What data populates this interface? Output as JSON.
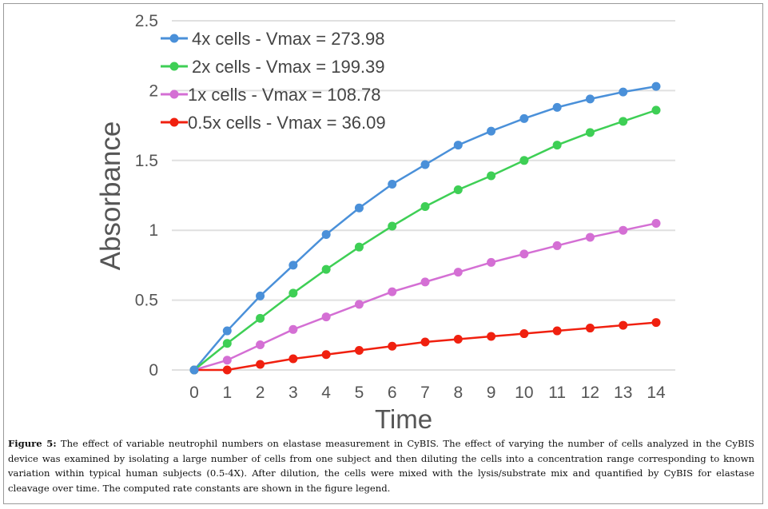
{
  "chart_data": {
    "type": "line",
    "xlabel": "Time",
    "ylabel": "Absorbance",
    "x": [
      0,
      1,
      2,
      3,
      4,
      5,
      6,
      7,
      8,
      9,
      10,
      11,
      12,
      13,
      14
    ],
    "xlim": [
      0,
      14
    ],
    "ylim": [
      0,
      2.5
    ],
    "yticks": [
      "0",
      "0.5",
      "1",
      "1.5",
      "2",
      "2.5"
    ],
    "xticks": [
      "0",
      "1",
      "2",
      "3",
      "4",
      "5",
      "6",
      "7",
      "8",
      "9",
      "10",
      "11",
      "12",
      "13",
      "14"
    ],
    "grid": "horizontal",
    "legend_position": "top-left",
    "series": [
      {
        "name": "4x cells - Vmax = 273.98",
        "color": "#4a90d9",
        "values": [
          0,
          0.28,
          0.53,
          0.75,
          0.97,
          1.16,
          1.33,
          1.47,
          1.61,
          1.71,
          1.8,
          1.88,
          1.94,
          1.99,
          2.03
        ]
      },
      {
        "name": "2x cells - Vmax = 199.39",
        "color": "#3ecf55",
        "values": [
          0,
          0.19,
          0.37,
          0.55,
          0.72,
          0.88,
          1.03,
          1.17,
          1.29,
          1.39,
          1.5,
          1.61,
          1.7,
          1.78,
          1.86
        ]
      },
      {
        "name": "1x cells - Vmax = 108.78",
        "color": "#d46fd4",
        "values": [
          0,
          0.07,
          0.18,
          0.29,
          0.38,
          0.47,
          0.56,
          0.63,
          0.7,
          0.77,
          0.83,
          0.89,
          0.95,
          1.0,
          1.05
        ]
      },
      {
        "name": "0.5x cells - Vmax = 36.09",
        "color": "#f0200f",
        "values": [
          0,
          0,
          0.04,
          0.08,
          0.11,
          0.14,
          0.17,
          0.2,
          0.22,
          0.24,
          0.26,
          0.28,
          0.3,
          0.32,
          0.34
        ]
      }
    ]
  },
  "caption": {
    "label": "Figure 5:",
    "text": " The effect of variable neutrophil numbers on elastase measurement in CyBIS. The effect of varying the number of cells analyzed in the CyBIS device was examined by isolating a large number of cells from one subject and then diluting the cells into a concentration range corresponding to known variation within typical human subjects (0.5-4X). After dilution, the cells were mixed with the lysis/substrate mix and quantified by CyBIS for elastase cleavage over time. The computed rate constants are shown in the figure legend."
  }
}
